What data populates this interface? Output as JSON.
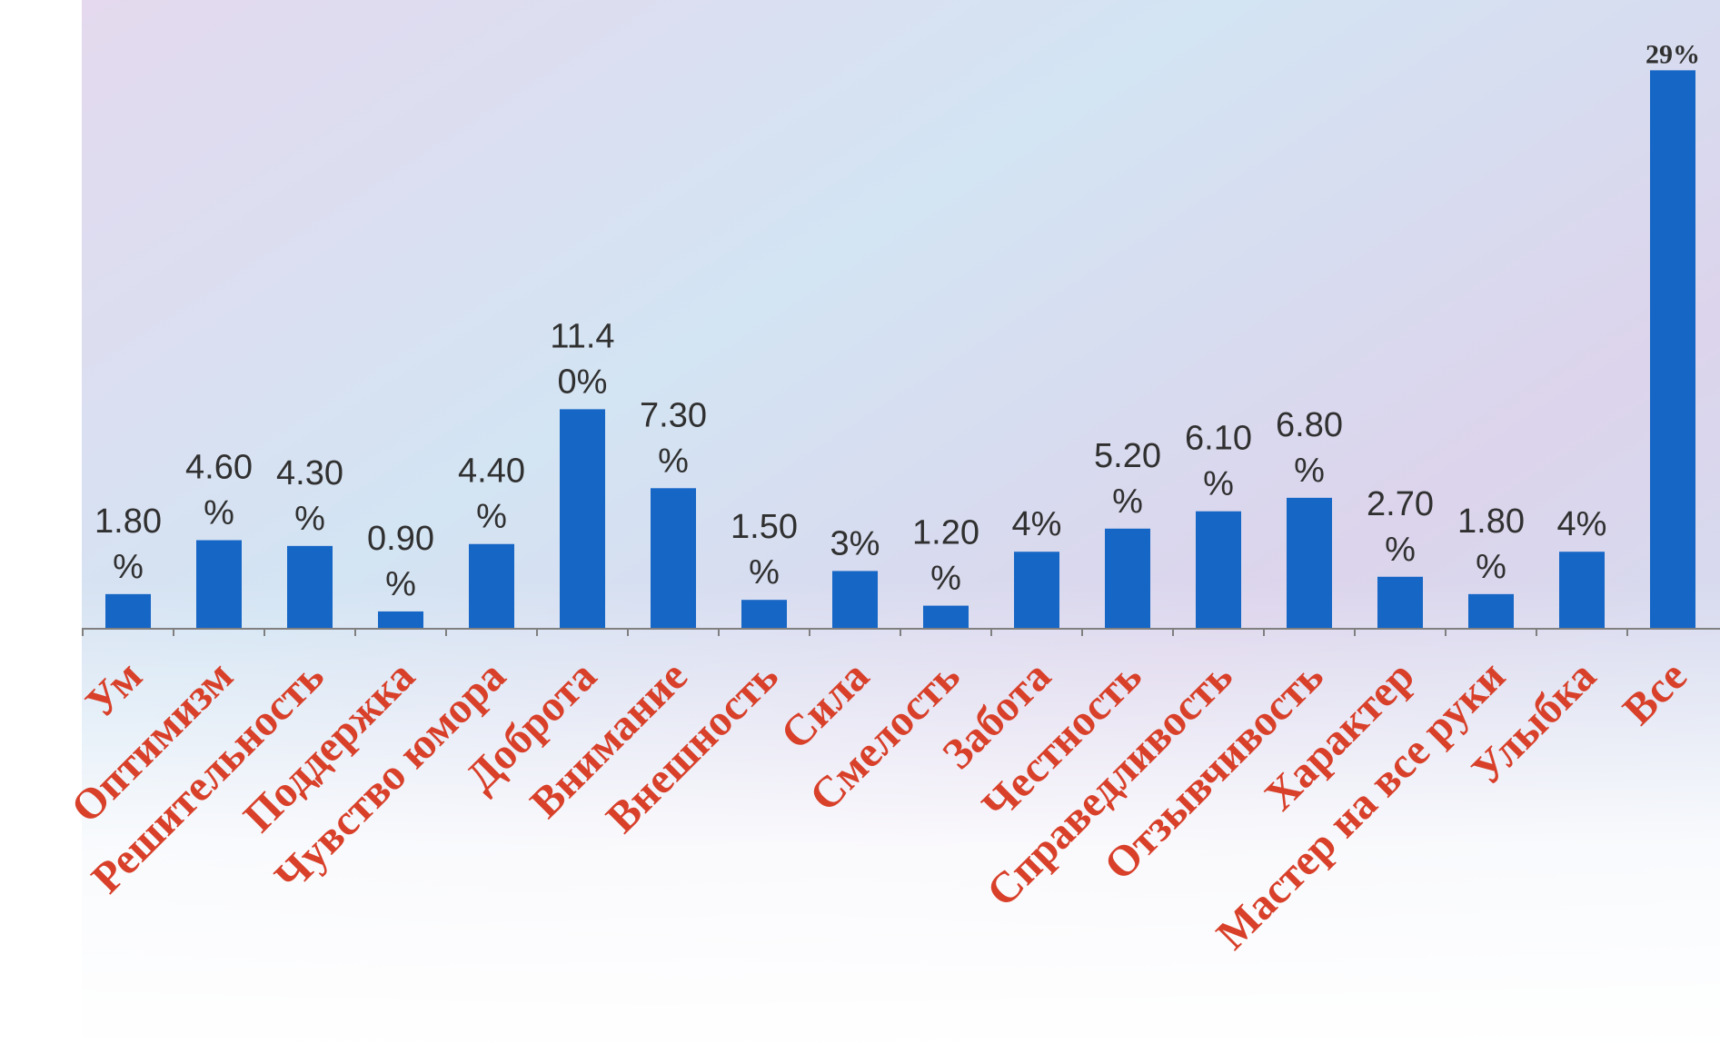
{
  "chart_data": {
    "type": "bar",
    "title": "",
    "xlabel": "",
    "ylabel": "",
    "ylim": [
      0,
      30
    ],
    "categories": [
      "Ум",
      "Оптимизм",
      "Решительность",
      "Поддержка",
      "Чувство юмора",
      "Доброта",
      "Внимание",
      "Внешность",
      "Сила",
      "Смелость",
      "Забота",
      "Честность",
      "Справедливость",
      "Отзывчивость",
      "Характер",
      "Мастер на все руки",
      "Улыбка",
      "Все"
    ],
    "values": [
      1.8,
      4.6,
      4.3,
      0.9,
      4.4,
      11.4,
      7.3,
      1.5,
      3,
      1.2,
      4,
      5.2,
      6.1,
      6.8,
      2.7,
      1.8,
      4,
      29
    ],
    "data_labels": [
      [
        "1.80",
        "%"
      ],
      [
        "4.60",
        "%"
      ],
      [
        "4.30",
        "%"
      ],
      [
        "0.90",
        "%"
      ],
      [
        "4.40",
        "%"
      ],
      [
        "11.4",
        "0%"
      ],
      [
        "7.30",
        "%"
      ],
      [
        "1.50",
        "%"
      ],
      [
        "3%"
      ],
      [
        "1.20",
        "%"
      ],
      [
        "4%"
      ],
      [
        "5.20",
        "%"
      ],
      [
        "6.10",
        "%"
      ],
      [
        "6.80",
        "%"
      ],
      [
        "2.70",
        "%"
      ],
      [
        "1.80",
        "%"
      ],
      [
        "4%"
      ],
      [
        "29%"
      ]
    ],
    "grid": false,
    "legend": "none"
  },
  "colors": {
    "bar": "#1666c5",
    "category_label": "#d8402a",
    "data_label": "#303030",
    "axis": "#808080",
    "background_tint": "#d7e3f1"
  }
}
